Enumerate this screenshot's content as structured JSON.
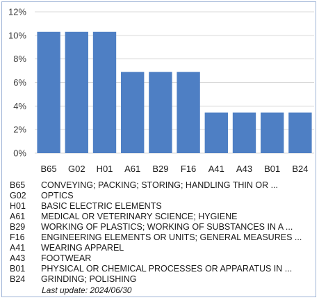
{
  "chart_data": {
    "type": "bar",
    "title": "",
    "xlabel": "",
    "ylabel": "",
    "ylim": [
      0,
      12
    ],
    "yticks": [
      "0%",
      "2%",
      "4%",
      "6%",
      "8%",
      "10%",
      "12%"
    ],
    "ytick_values": [
      0,
      2,
      4,
      6,
      8,
      10,
      12
    ],
    "grid": true,
    "bar_color": "#4e7fc4",
    "categories": [
      "B65",
      "G02",
      "H01",
      "A61",
      "B29",
      "F16",
      "A41",
      "A43",
      "B01",
      "B24"
    ],
    "values": [
      10.3,
      10.3,
      10.3,
      6.9,
      6.9,
      6.9,
      3.45,
      3.45,
      3.45,
      3.45
    ]
  },
  "legend": [
    {
      "code": "B65",
      "desc": "CONVEYING; PACKING; STORING; HANDLING THIN OR ..."
    },
    {
      "code": "G02",
      "desc": "OPTICS"
    },
    {
      "code": "H01",
      "desc": "BASIC ELECTRIC ELEMENTS"
    },
    {
      "code": "A61",
      "desc": "MEDICAL OR VETERINARY SCIENCE; HYGIENE"
    },
    {
      "code": "B29",
      "desc": "WORKING OF PLASTICS; WORKING OF SUBSTANCES IN A ..."
    },
    {
      "code": "F16",
      "desc": "ENGINEERING ELEMENTS OR UNITS; GENERAL MEASURES ..."
    },
    {
      "code": "A41",
      "desc": "WEARING APPAREL"
    },
    {
      "code": "A43",
      "desc": "FOOTWEAR"
    },
    {
      "code": "B01",
      "desc": "PHYSICAL OR CHEMICAL PROCESSES OR APPARATUS IN ..."
    },
    {
      "code": "B24",
      "desc": "GRINDING; POLISHING"
    }
  ],
  "footer": {
    "last_update": "Last update:  2024/06/30"
  }
}
